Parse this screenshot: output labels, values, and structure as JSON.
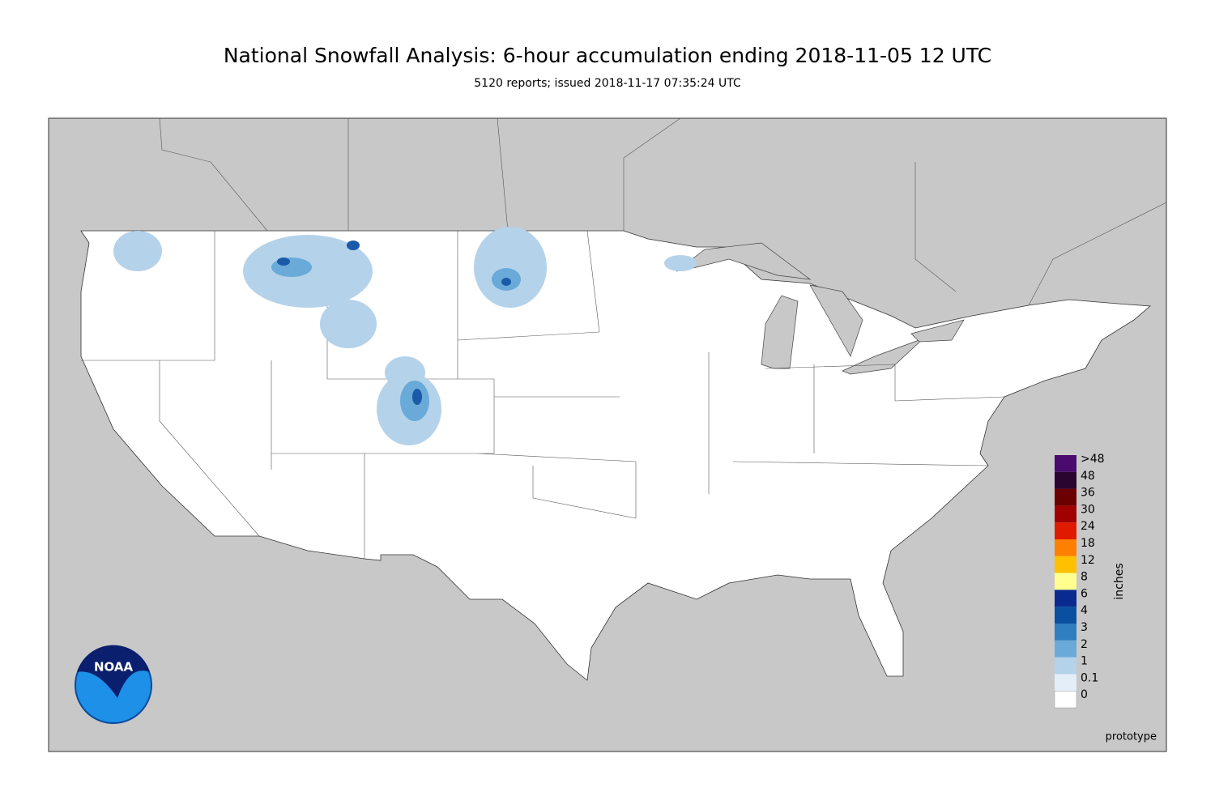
{
  "header": {
    "title": "National Snowfall Analysis: 6-hour accumulation ending 2018-11-05 12 UTC",
    "subtitle": "5120 reports; issued 2018-11-17 07:35:24 UTC"
  },
  "legend": {
    "title": "inches",
    "labels": [
      ">48",
      "48",
      "36",
      "30",
      "24",
      "18",
      "12",
      "8",
      "6",
      "4",
      "3",
      "2",
      "1",
      "0.1",
      "0"
    ],
    "colors": [
      "#4a0a6e",
      "#2a0530",
      "#6a0000",
      "#a00000",
      "#e01a00",
      "#ff8000",
      "#ffc000",
      "#ffff90",
      "#0a2a90",
      "#0a50a0",
      "#2e7ec0",
      "#6aaad8",
      "#b4d2ea",
      "#e4eef8",
      "#ffffff"
    ]
  },
  "logo": {
    "text": "NOAA"
  },
  "footer": {
    "note": "prototype"
  }
}
